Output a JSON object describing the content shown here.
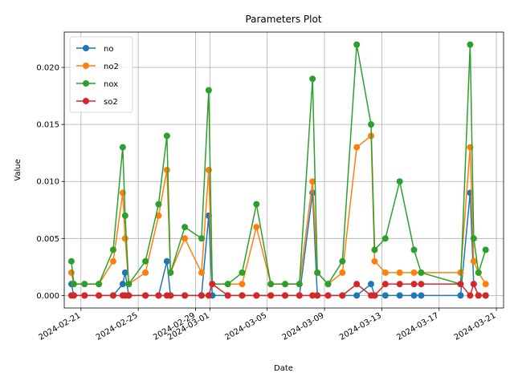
{
  "chart_data": {
    "type": "line",
    "title": "Parameters Plot",
    "xlabel": "Date",
    "ylabel": "Value",
    "x_type": "date",
    "xlim": [
      "2024-02-19T20:00",
      "2024-03-21T12:00"
    ],
    "ylim": [
      -0.0011,
      0.0231
    ],
    "xticks": [
      "2024-02-21",
      "2024-02-25",
      "2024-02-29",
      "2024-03-01",
      "2024-03-05",
      "2024-03-09",
      "2024-03-13",
      "2024-03-17",
      "2024-03-21"
    ],
    "yticks": [
      0.0,
      0.005,
      0.01,
      0.015,
      0.02
    ],
    "ytick_labels": [
      "0.000",
      "0.005",
      "0.010",
      "0.015",
      "0.020"
    ],
    "grid": true,
    "legend_position": "top-left",
    "series": [
      {
        "name": "no",
        "color": "#1f77b4",
        "points": [
          [
            "2024-02-20T08:00",
            0.001
          ],
          [
            "2024-02-20T12:00",
            0.0
          ],
          [
            "2024-02-21T06:00",
            0.0
          ],
          [
            "2024-02-22T06:00",
            0.0
          ],
          [
            "2024-02-23T06:00",
            0.0
          ],
          [
            "2024-02-23T22:00",
            0.001
          ],
          [
            "2024-02-24T02:00",
            0.002
          ],
          [
            "2024-02-24T08:00",
            0.0
          ],
          [
            "2024-02-25T12:00",
            0.0
          ],
          [
            "2024-02-26T10:00",
            0.0
          ],
          [
            "2024-02-27T00:00",
            0.003
          ],
          [
            "2024-02-27T06:00",
            0.0
          ],
          [
            "2024-02-28T06:00",
            0.0
          ],
          [
            "2024-02-29T10:00",
            0.0
          ],
          [
            "2024-02-29T22:00",
            0.007
          ],
          [
            "2024-03-01T04:00",
            0.0
          ],
          [
            "2024-03-02T06:00",
            0.0
          ],
          [
            "2024-03-03T06:00",
            0.0
          ],
          [
            "2024-03-04T06:00",
            0.0
          ],
          [
            "2024-03-05T06:00",
            0.0
          ],
          [
            "2024-03-06T06:00",
            0.0
          ],
          [
            "2024-03-07T06:00",
            0.0
          ],
          [
            "2024-03-08T04:00",
            0.009
          ],
          [
            "2024-03-08T12:00",
            0.0
          ],
          [
            "2024-03-09T06:00",
            0.0
          ],
          [
            "2024-03-10T06:00",
            0.0
          ],
          [
            "2024-03-11T06:00",
            0.0
          ],
          [
            "2024-03-12T06:00",
            0.001
          ],
          [
            "2024-03-12T12:00",
            0.0
          ],
          [
            "2024-03-13T06:00",
            0.0
          ],
          [
            "2024-03-14T06:00",
            0.0
          ],
          [
            "2024-03-15T06:00",
            0.0
          ],
          [
            "2024-03-15T18:00",
            0.0
          ],
          [
            "2024-03-18T12:00",
            0.0
          ],
          [
            "2024-03-19T04:00",
            0.009
          ],
          [
            "2024-03-19T10:00",
            0.001
          ],
          [
            "2024-03-19T18:00",
            0.0
          ],
          [
            "2024-03-20T06:00",
            0.0
          ]
        ]
      },
      {
        "name": "no2",
        "color": "#ff7f0e",
        "points": [
          [
            "2024-02-20T08:00",
            0.002
          ],
          [
            "2024-02-20T12:00",
            0.001
          ],
          [
            "2024-02-21T06:00",
            0.001
          ],
          [
            "2024-02-22T06:00",
            0.001
          ],
          [
            "2024-02-23T06:00",
            0.003
          ],
          [
            "2024-02-23T22:00",
            0.009
          ],
          [
            "2024-02-24T02:00",
            0.005
          ],
          [
            "2024-02-24T08:00",
            0.001
          ],
          [
            "2024-02-25T12:00",
            0.002
          ],
          [
            "2024-02-26T10:00",
            0.007
          ],
          [
            "2024-02-27T00:00",
            0.011
          ],
          [
            "2024-02-27T06:00",
            0.002
          ],
          [
            "2024-02-28T06:00",
            0.005
          ],
          [
            "2024-02-29T10:00",
            0.002
          ],
          [
            "2024-02-29T22:00",
            0.011
          ],
          [
            "2024-03-01T04:00",
            0.001
          ],
          [
            "2024-03-02T06:00",
            0.001
          ],
          [
            "2024-03-03T06:00",
            0.001
          ],
          [
            "2024-03-04T06:00",
            0.006
          ],
          [
            "2024-03-05T06:00",
            0.001
          ],
          [
            "2024-03-06T06:00",
            0.001
          ],
          [
            "2024-03-07T06:00",
            0.001
          ],
          [
            "2024-03-08T04:00",
            0.01
          ],
          [
            "2024-03-08T12:00",
            0.002
          ],
          [
            "2024-03-09T06:00",
            0.001
          ],
          [
            "2024-03-10T06:00",
            0.002
          ],
          [
            "2024-03-11T06:00",
            0.013
          ],
          [
            "2024-03-12T06:00",
            0.014
          ],
          [
            "2024-03-12T12:00",
            0.003
          ],
          [
            "2024-03-13T06:00",
            0.002
          ],
          [
            "2024-03-14T06:00",
            0.002
          ],
          [
            "2024-03-15T06:00",
            0.002
          ],
          [
            "2024-03-15T18:00",
            0.002
          ],
          [
            "2024-03-18T12:00",
            0.002
          ],
          [
            "2024-03-19T04:00",
            0.013
          ],
          [
            "2024-03-19T10:00",
            0.003
          ],
          [
            "2024-03-19T18:00",
            0.002
          ],
          [
            "2024-03-20T06:00",
            0.001
          ]
        ]
      },
      {
        "name": "nox",
        "color": "#2ca02c",
        "points": [
          [
            "2024-02-20T08:00",
            0.003
          ],
          [
            "2024-02-20T12:00",
            0.001
          ],
          [
            "2024-02-21T06:00",
            0.001
          ],
          [
            "2024-02-22T06:00",
            0.001
          ],
          [
            "2024-02-23T06:00",
            0.004
          ],
          [
            "2024-02-23T22:00",
            0.013
          ],
          [
            "2024-02-24T02:00",
            0.007
          ],
          [
            "2024-02-24T08:00",
            0.001
          ],
          [
            "2024-02-25T12:00",
            0.003
          ],
          [
            "2024-02-26T10:00",
            0.008
          ],
          [
            "2024-02-27T00:00",
            0.014
          ],
          [
            "2024-02-27T06:00",
            0.002
          ],
          [
            "2024-02-28T06:00",
            0.006
          ],
          [
            "2024-02-29T10:00",
            0.005
          ],
          [
            "2024-02-29T22:00",
            0.018
          ],
          [
            "2024-03-01T04:00",
            0.001
          ],
          [
            "2024-03-02T06:00",
            0.001
          ],
          [
            "2024-03-03T06:00",
            0.002
          ],
          [
            "2024-03-04T06:00",
            0.008
          ],
          [
            "2024-03-05T06:00",
            0.001
          ],
          [
            "2024-03-06T06:00",
            0.001
          ],
          [
            "2024-03-07T06:00",
            0.001
          ],
          [
            "2024-03-08T04:00",
            0.019
          ],
          [
            "2024-03-08T12:00",
            0.002
          ],
          [
            "2024-03-09T06:00",
            0.001
          ],
          [
            "2024-03-10T06:00",
            0.003
          ],
          [
            "2024-03-11T06:00",
            0.022
          ],
          [
            "2024-03-12T06:00",
            0.015
          ],
          [
            "2024-03-12T12:00",
            0.004
          ],
          [
            "2024-03-13T06:00",
            0.005
          ],
          [
            "2024-03-14T06:00",
            0.01
          ],
          [
            "2024-03-15T06:00",
            0.004
          ],
          [
            "2024-03-15T18:00",
            0.002
          ],
          [
            "2024-03-18T12:00",
            0.001
          ],
          [
            "2024-03-19T04:00",
            0.022
          ],
          [
            "2024-03-19T10:00",
            0.005
          ],
          [
            "2024-03-19T18:00",
            0.002
          ],
          [
            "2024-03-20T06:00",
            0.004
          ]
        ]
      },
      {
        "name": "so2",
        "color": "#d62728",
        "points": [
          [
            "2024-02-20T08:00",
            0.0
          ],
          [
            "2024-02-20T12:00",
            0.0
          ],
          [
            "2024-02-21T06:00",
            0.0
          ],
          [
            "2024-02-22T06:00",
            0.0
          ],
          [
            "2024-02-23T06:00",
            0.0
          ],
          [
            "2024-02-23T22:00",
            0.0
          ],
          [
            "2024-02-24T02:00",
            0.0
          ],
          [
            "2024-02-24T08:00",
            0.0
          ],
          [
            "2024-02-25T12:00",
            0.0
          ],
          [
            "2024-02-26T10:00",
            0.0
          ],
          [
            "2024-02-27T00:00",
            0.0
          ],
          [
            "2024-02-27T06:00",
            0.0
          ],
          [
            "2024-02-28T06:00",
            0.0
          ],
          [
            "2024-02-29T10:00",
            0.0
          ],
          [
            "2024-02-29T22:00",
            0.0
          ],
          [
            "2024-03-01T04:00",
            0.001
          ],
          [
            "2024-03-02T06:00",
            0.0
          ],
          [
            "2024-03-03T06:00",
            0.0
          ],
          [
            "2024-03-04T06:00",
            0.0
          ],
          [
            "2024-03-05T06:00",
            0.0
          ],
          [
            "2024-03-06T06:00",
            0.0
          ],
          [
            "2024-03-07T06:00",
            0.0
          ],
          [
            "2024-03-08T04:00",
            0.0
          ],
          [
            "2024-03-08T12:00",
            0.0
          ],
          [
            "2024-03-09T06:00",
            0.0
          ],
          [
            "2024-03-10T06:00",
            0.0
          ],
          [
            "2024-03-11T06:00",
            0.001
          ],
          [
            "2024-03-12T06:00",
            0.0
          ],
          [
            "2024-03-12T12:00",
            0.0
          ],
          [
            "2024-03-13T06:00",
            0.001
          ],
          [
            "2024-03-14T06:00",
            0.001
          ],
          [
            "2024-03-15T06:00",
            0.001
          ],
          [
            "2024-03-15T18:00",
            0.001
          ],
          [
            "2024-03-18T12:00",
            0.001
          ],
          [
            "2024-03-19T04:00",
            0.0
          ],
          [
            "2024-03-19T10:00",
            0.001
          ],
          [
            "2024-03-19T18:00",
            0.0
          ],
          [
            "2024-03-20T06:00",
            0.0
          ]
        ]
      }
    ]
  }
}
